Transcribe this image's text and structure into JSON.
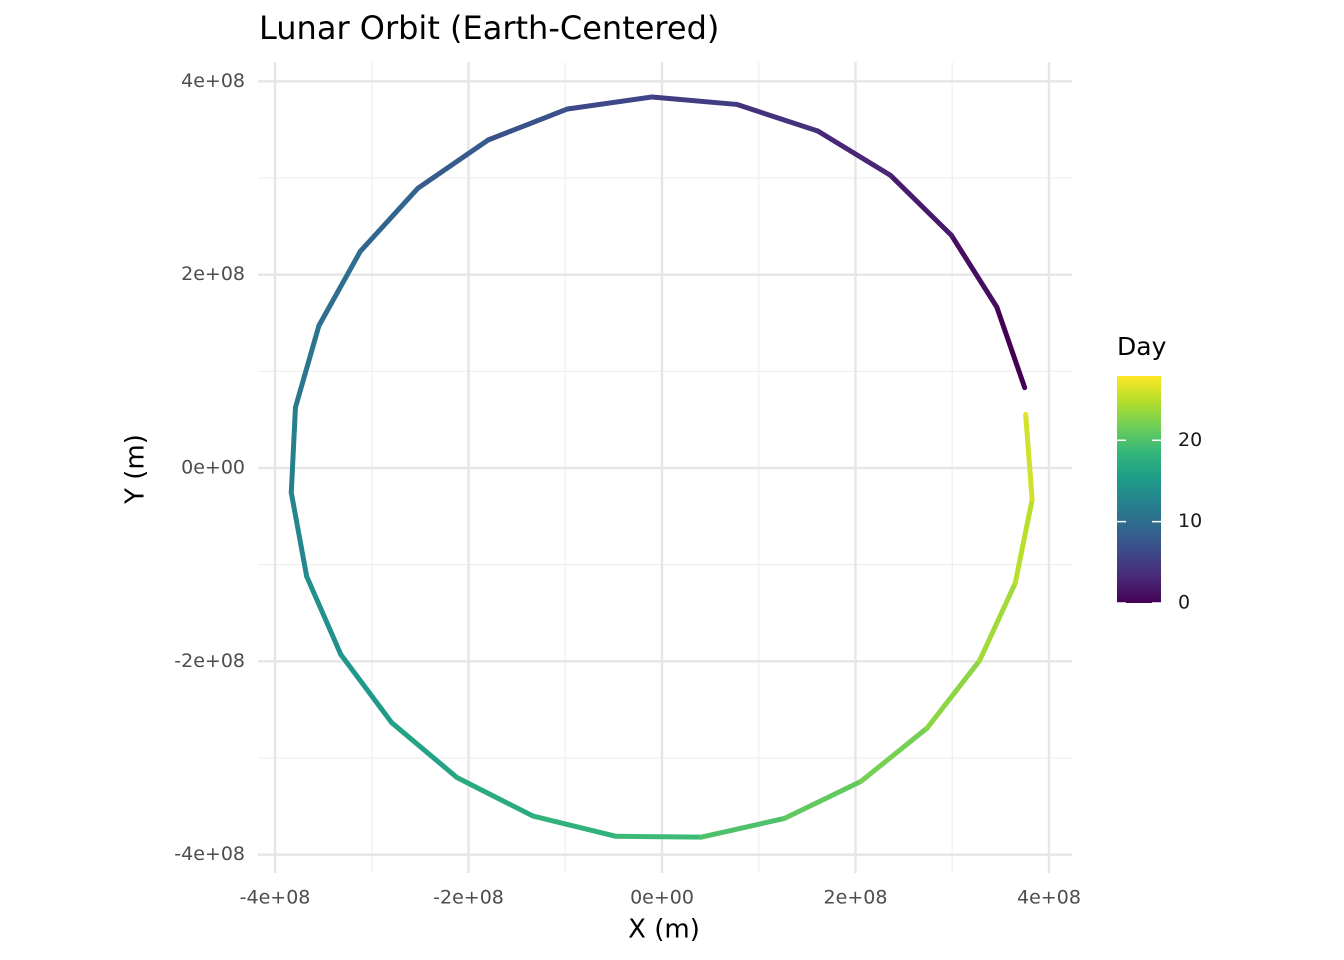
{
  "chart_data": {
    "type": "path",
    "title": "Lunar Orbit (Earth-Centered)",
    "x_label": "X (m)",
    "y_label": "Y (m)",
    "x": [
      374900000,
      346100000,
      299100000,
      236400000,
      161000000,
      77300000,
      -10400000,
      -97700000,
      -179800000,
      -252400000,
      -311800000,
      -354600000,
      -378900000,
      -383200000,
      -367300000,
      -332000000,
      -279400000,
      -212000000,
      -133300000,
      -47700000,
      40400000,
      126400000,
      205700000,
      274100000,
      328300000,
      365100000,
      382600000,
      375900000
    ],
    "values": [
      83100000,
      166400000,
      240800000,
      302600000,
      348600000,
      376100000,
      383800000,
      371400000,
      339300000,
      289300000,
      224200000,
      147300000,
      62600000,
      -25500000,
      -112100000,
      -192900000,
      -263500000,
      -320200000,
      -360100000,
      -381000000,
      -381900000,
      -362600000,
      -324200000,
      -269000000,
      -199200000,
      -119100000,
      -32800000,
      55300000
    ],
    "day": [
      0,
      1,
      2,
      3,
      4,
      5,
      6,
      7,
      8,
      9,
      10,
      11,
      12,
      13,
      14,
      15,
      16,
      17,
      18,
      19,
      20,
      21,
      22,
      23,
      24,
      25,
      26,
      27
    ],
    "xlim": [
      -417600000,
      423800000
    ],
    "ylim": [
      -419000000,
      420000000
    ],
    "xticks": [
      {
        "value": -400000000,
        "label": "-4e+08"
      },
      {
        "value": -200000000,
        "label": "-2e+08"
      },
      {
        "value": 0,
        "label": "0e+00"
      },
      {
        "value": 200000000,
        "label": "2e+08"
      },
      {
        "value": 400000000,
        "label": "4e+08"
      }
    ],
    "yticks": [
      {
        "value": -400000000,
        "label": "-4e+08"
      },
      {
        "value": -200000000,
        "label": "-2e+08"
      },
      {
        "value": 0,
        "label": "0e+00"
      },
      {
        "value": 200000000,
        "label": "2e+08"
      },
      {
        "value": 400000000,
        "label": "4e+08"
      }
    ],
    "xminorticks": [
      -300000000,
      -100000000,
      100000000,
      300000000
    ],
    "yminorticks": [
      -300000000,
      -100000000,
      100000000,
      300000000
    ],
    "grid": true,
    "colorbar": {
      "title": "Day",
      "lim": [
        0,
        27.9
      ],
      "ticks": [
        0,
        10,
        20
      ],
      "colors": [
        "#440154",
        "#482878",
        "#3e4989",
        "#31688e",
        "#26828e",
        "#1f9e89",
        "#35b779",
        "#6ece58",
        "#b5de2b",
        "#fde725"
      ]
    }
  }
}
